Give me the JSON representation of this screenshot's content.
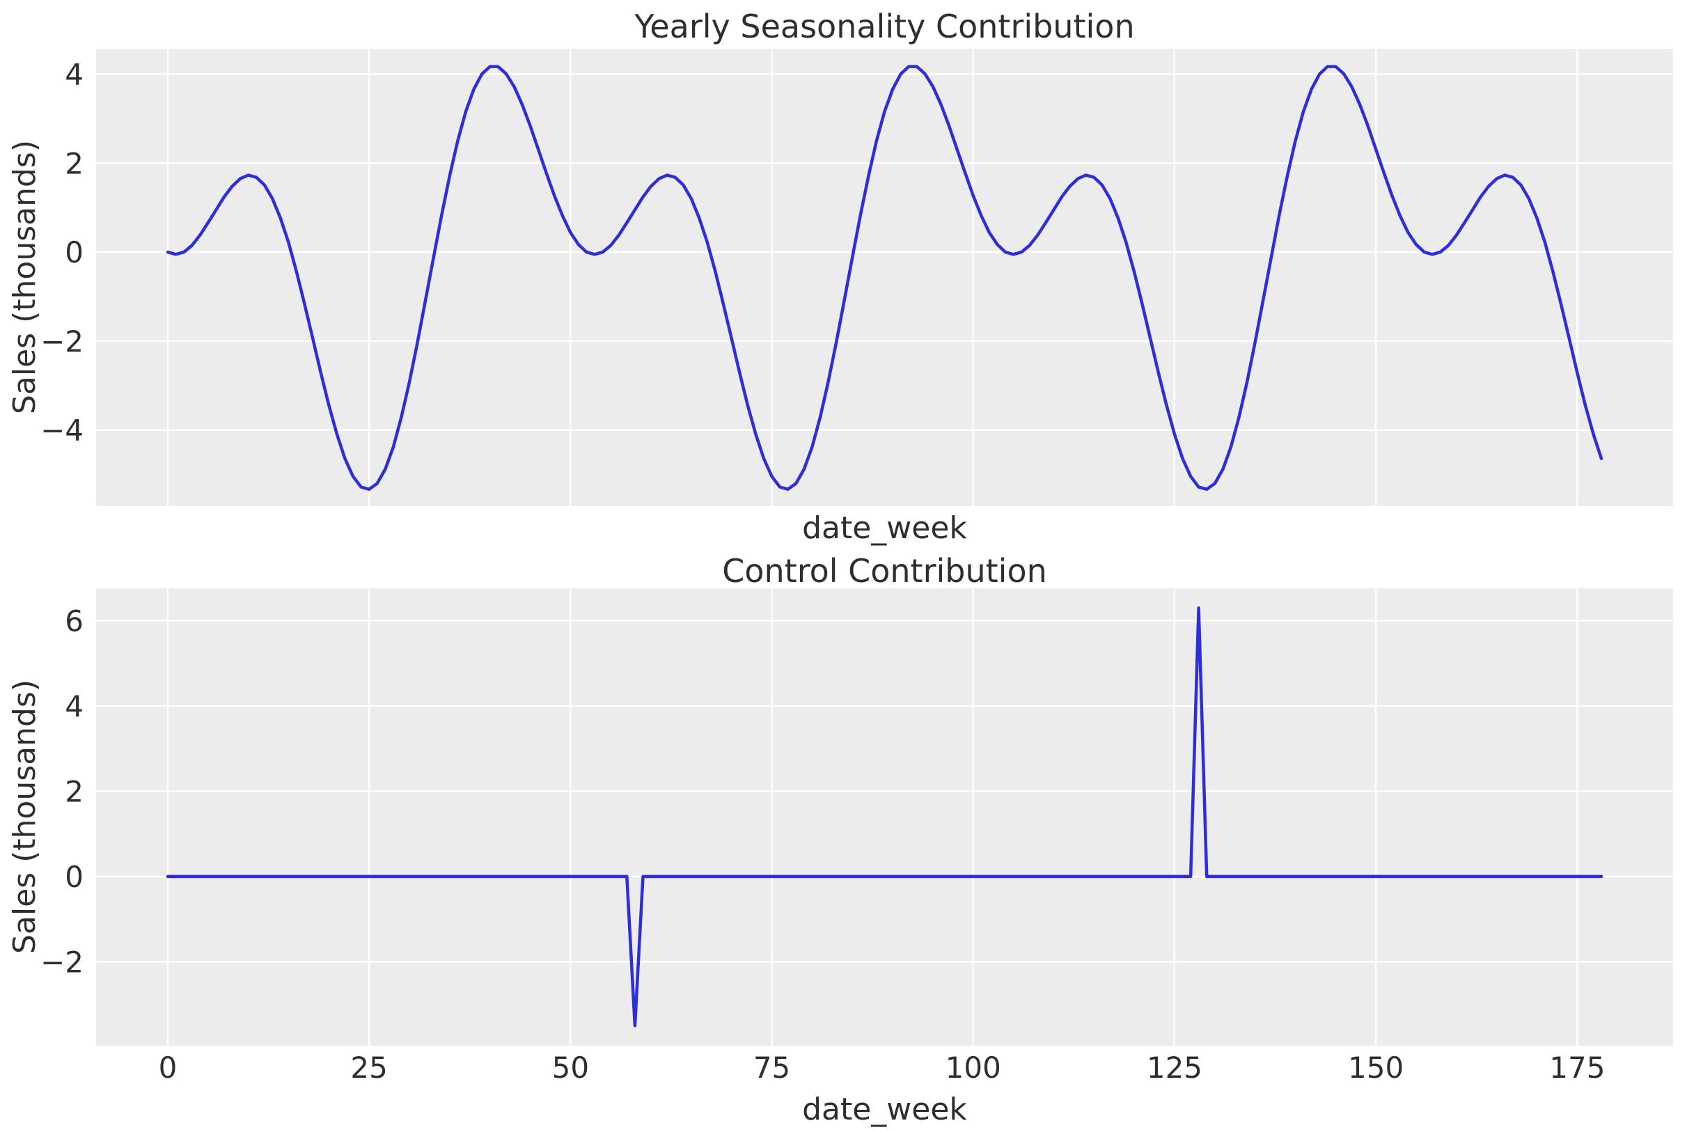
{
  "figure": {
    "background": "#ffffff",
    "plot_background": "#ececec",
    "grid_color": "#ffffff",
    "line_color": "#2d2dd9",
    "text_color": "#2e2e2e"
  },
  "chart_data": [
    {
      "type": "line",
      "title": "Yearly Seasonality Contribution",
      "xlabel": "date_week",
      "ylabel": "Sales (thousands)",
      "legend": "none",
      "grid": true,
      "x_start": 0,
      "x_step": 1,
      "n_points": 179,
      "xlim": [
        -8.9,
        186.9
      ],
      "ylim": [
        -5.71,
        4.57
      ],
      "xticks": [
        0,
        25,
        50,
        75,
        100,
        125,
        150,
        175
      ],
      "yticks": [
        4,
        2,
        0,
        -2,
        -4
      ],
      "show_xticklabels": false,
      "seasonality_period_weeks": 52,
      "values": [
        0,
        -0.05,
        0,
        0.15,
        0.38,
        0.66,
        0.95,
        1.24,
        1.48,
        1.65,
        1.73,
        1.68,
        1.51,
        1.2,
        0.76,
        0.21,
        -0.45,
        -1.18,
        -1.94,
        -2.71,
        -3.44,
        -4.09,
        -4.64,
        -5.04,
        -5.28,
        -5.33,
        -5.2,
        -4.88,
        -4.38,
        -3.71,
        -2.92,
        -2.03,
        -1.08,
        -0.12,
        0.83,
        1.71,
        2.5,
        3.16,
        3.66,
        4,
        4.17,
        4.17,
        4.01,
        3.72,
        3.32,
        2.84,
        2.31,
        1.78,
        1.27,
        0.82,
        0.44,
        0.17,
        0,
        -0.05,
        0,
        0.15,
        0.38,
        0.66,
        0.95,
        1.24,
        1.48,
        1.65,
        1.73,
        1.68,
        1.51,
        1.2,
        0.76,
        0.21,
        -0.45,
        -1.18,
        -1.94,
        -2.71,
        -3.44,
        -4.09,
        -4.64,
        -5.04,
        -5.28,
        -5.33,
        -5.2,
        -4.88,
        -4.38,
        -3.71,
        -2.92,
        -2.03,
        -1.08,
        -0.12,
        0.83,
        1.71,
        2.5,
        3.16,
        3.66,
        4,
        4.17,
        4.17,
        4.01,
        3.72,
        3.32,
        2.84,
        2.31,
        1.78,
        1.27,
        0.82,
        0.44,
        0.17,
        0,
        -0.05,
        0,
        0.15,
        0.38,
        0.66,
        0.95,
        1.24,
        1.48,
        1.65,
        1.73,
        1.68,
        1.51,
        1.2,
        0.76,
        0.21,
        -0.45,
        -1.18,
        -1.94,
        -2.71,
        -3.44,
        -4.09,
        -4.64,
        -5.04,
        -5.28,
        -5.33,
        -5.2,
        -4.88,
        -4.38,
        -3.71,
        -2.92,
        -2.03,
        -1.08,
        -0.12,
        0.83,
        1.71,
        2.5,
        3.16,
        3.66,
        4,
        4.17,
        4.17,
        4.01,
        3.72,
        3.32,
        2.84,
        2.31,
        1.78,
        1.27,
        0.82,
        0.44,
        0.17,
        0,
        -0.05,
        0,
        0.15,
        0.38,
        0.66,
        0.95,
        1.24,
        1.48,
        1.65,
        1.73,
        1.68,
        1.51,
        1.2,
        0.76,
        0.21,
        -0.45,
        -1.18,
        -1.94,
        -2.71,
        -3.44,
        -4.09,
        -4.64
      ]
    },
    {
      "type": "line",
      "title": "Control Contribution",
      "xlabel": "date_week",
      "ylabel": "Sales (thousands)",
      "legend": "none",
      "grid": true,
      "x_start": 0,
      "x_step": 1,
      "n_points": 179,
      "xlim": [
        -8.9,
        186.9
      ],
      "ylim": [
        -3.97,
        6.76
      ],
      "xticks": [
        0,
        25,
        50,
        75,
        100,
        125,
        150,
        175
      ],
      "yticks": [
        6,
        4,
        2,
        0,
        -2
      ],
      "show_xticklabels": true,
      "baseline_value": 0,
      "spikes": [
        {
          "x": 58,
          "value": -3.5
        },
        {
          "x": 128,
          "value": 6.3
        }
      ]
    }
  ]
}
